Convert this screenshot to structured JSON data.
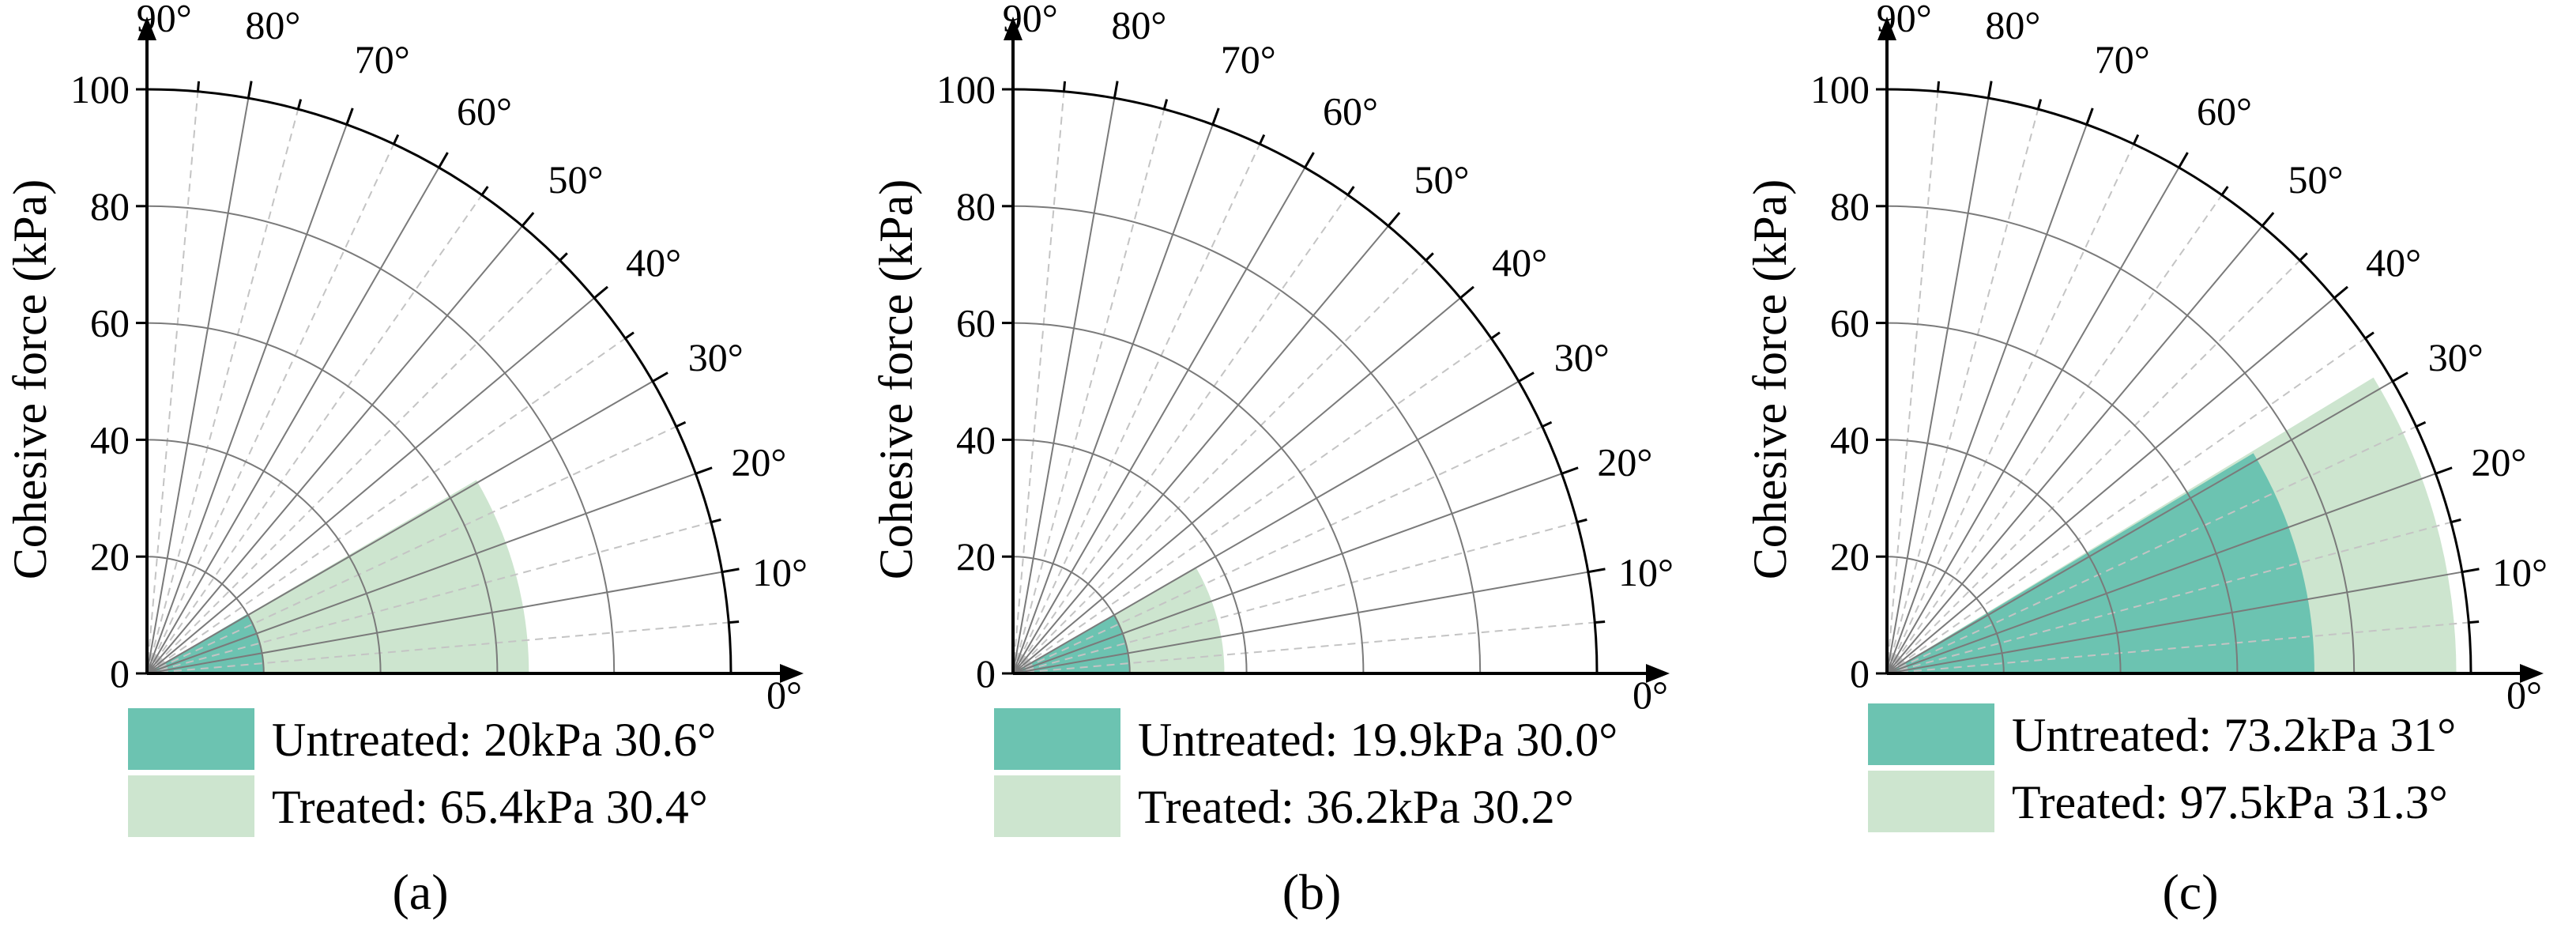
{
  "colors": {
    "untreated": "#6cc3b1",
    "treated": "#cde5cf",
    "grid_solid": "#7a7a7a",
    "grid_dashed": "#c4c4c4",
    "axis": "#000000"
  },
  "chart_data": [
    {
      "type": "polar-sector",
      "panel_label": "(a)",
      "ylabel": "Cohesive force (kPa)",
      "rlim": [
        0,
        100
      ],
      "r_ticks": [
        "0",
        "20",
        "40",
        "60",
        "80",
        "100"
      ],
      "angle_ticks": [
        "0°",
        "10°",
        "20°",
        "30°",
        "40°",
        "50°",
        "60°",
        "70°",
        "80°",
        "90°"
      ],
      "series": [
        {
          "name": "Treated",
          "cohesion_kpa": 65.4,
          "friction_angle_deg": 30.4,
          "legend": "Treated: 65.4kPa 30.4°"
        },
        {
          "name": "Untreated",
          "cohesion_kpa": 20,
          "friction_angle_deg": 30.6,
          "legend": "Untreated: 20kPa 30.6°"
        }
      ]
    },
    {
      "type": "polar-sector",
      "panel_label": "(b)",
      "ylabel": "Cohesive force (kPa)",
      "rlim": [
        0,
        100
      ],
      "r_ticks": [
        "0",
        "20",
        "40",
        "60",
        "80",
        "100"
      ],
      "angle_ticks": [
        "0°",
        "10°",
        "20°",
        "30°",
        "40°",
        "50°",
        "60°",
        "70°",
        "80°",
        "90°"
      ],
      "series": [
        {
          "name": "Treated",
          "cohesion_kpa": 36.2,
          "friction_angle_deg": 30.2,
          "legend": "Treated: 36.2kPa 30.2°"
        },
        {
          "name": "Untreated",
          "cohesion_kpa": 19.9,
          "friction_angle_deg": 30.0,
          "legend": "Untreated: 19.9kPa 30.0°"
        }
      ]
    },
    {
      "type": "polar-sector",
      "panel_label": "(c)",
      "ylabel": "Cohesive force (kPa)",
      "rlim": [
        0,
        100
      ],
      "r_ticks": [
        "0",
        "20",
        "40",
        "60",
        "80",
        "100"
      ],
      "angle_ticks": [
        "0°",
        "10°",
        "20°",
        "30°",
        "40°",
        "50°",
        "60°",
        "70°",
        "80°",
        "90°"
      ],
      "series": [
        {
          "name": "Treated",
          "cohesion_kpa": 97.5,
          "friction_angle_deg": 31.3,
          "legend": "Treated: 97.5kPa 31.3°"
        },
        {
          "name": "Untreated",
          "cohesion_kpa": 73.2,
          "friction_angle_deg": 31,
          "legend": "Untreated: 73.2kPa 31°"
        }
      ]
    }
  ]
}
